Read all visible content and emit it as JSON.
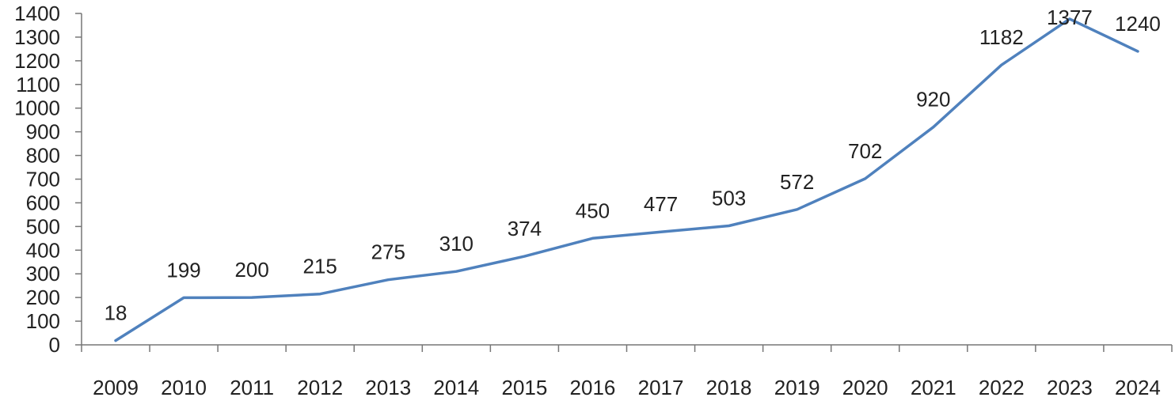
{
  "chart_data": {
    "type": "line",
    "title": "",
    "xlabel": "",
    "ylabel": "",
    "categories": [
      "2009",
      "2010",
      "2011",
      "2012",
      "2013",
      "2014",
      "2015",
      "2016",
      "2017",
      "2018",
      "2019",
      "2020",
      "2021",
      "2022",
      "2023",
      "2024"
    ],
    "series": [
      {
        "values": [
          18,
          199,
          200,
          215,
          275,
          310,
          374,
          450,
          477,
          503,
          572,
          702,
          920,
          1182,
          1377,
          1240
        ],
        "color": "#4f81bd"
      }
    ],
    "data_labels": [
      "18",
      "199",
      "200",
      "215",
      "275",
      "310",
      "374",
      "450",
      "477",
      "503",
      "572",
      "702",
      "920",
      "1182",
      "1377",
      "1240"
    ],
    "ylim": [
      0,
      1400
    ],
    "y_ticks": [
      "0",
      "100",
      "200",
      "300",
      "400",
      "500",
      "600",
      "700",
      "800",
      "900",
      "1000",
      "1100",
      "1200",
      "1300",
      "1400"
    ],
    "grid": false,
    "legend": "none"
  }
}
